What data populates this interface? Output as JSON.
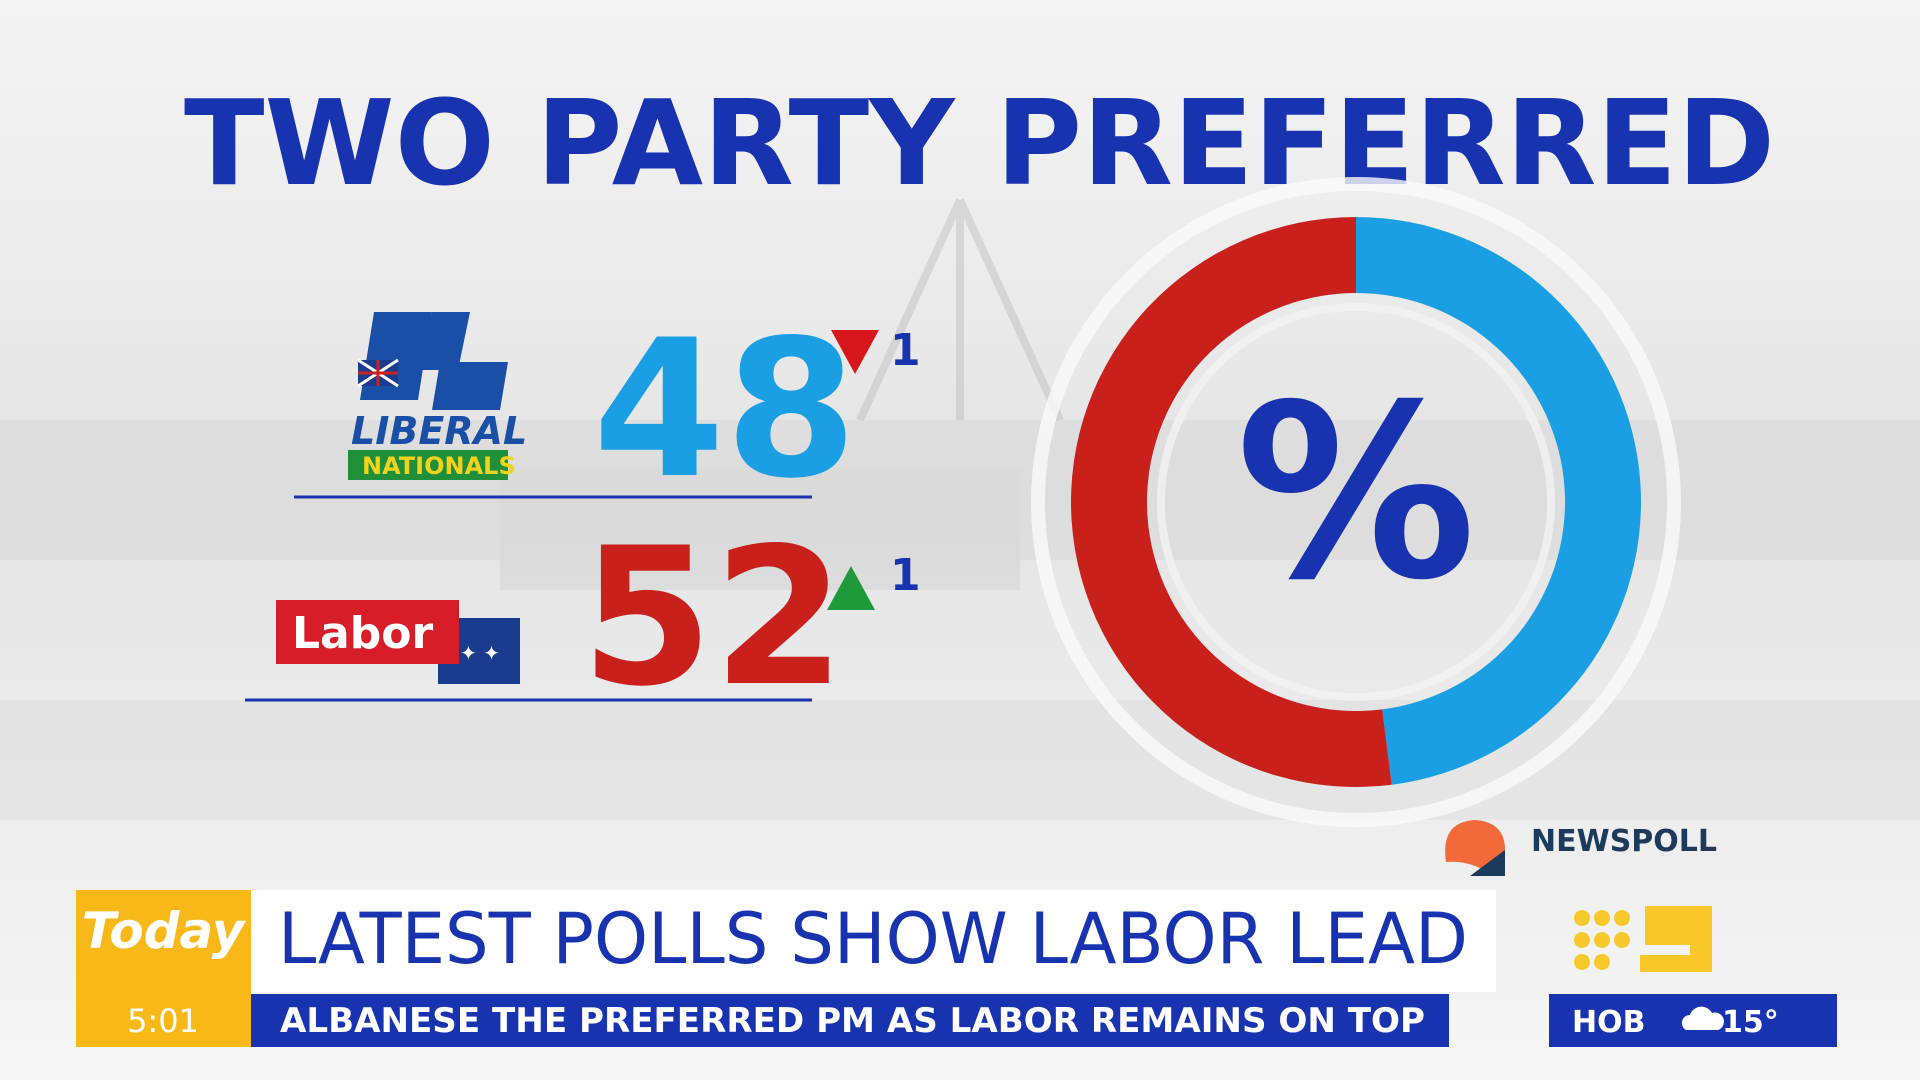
{
  "chart_data": {
    "type": "donut",
    "title": "TWO PARTY PREFERRED",
    "center_label": "%",
    "series": [
      {
        "name": "LIBERAL",
        "subname": "NATIONALS",
        "color": "#1a9fe4",
        "value": 48,
        "change": 1,
        "change_direction": "down",
        "change_color": "#d8161b"
      },
      {
        "name": "Labor",
        "color": "#c9201b",
        "value": 52,
        "change": 1,
        "change_direction": "up",
        "change_color": "#1f9a3a"
      }
    ]
  },
  "source": "NEWSPOLL",
  "ticker": {
    "brand": "Today",
    "time": "5:01",
    "headline": "LATEST POLLS SHOW LABOR LEAD",
    "subline": "ALBANESE THE PREFERRED PM AS LABOR REMAINS ON TOP",
    "weather": {
      "location": "HOB",
      "temperature": "15°"
    }
  }
}
